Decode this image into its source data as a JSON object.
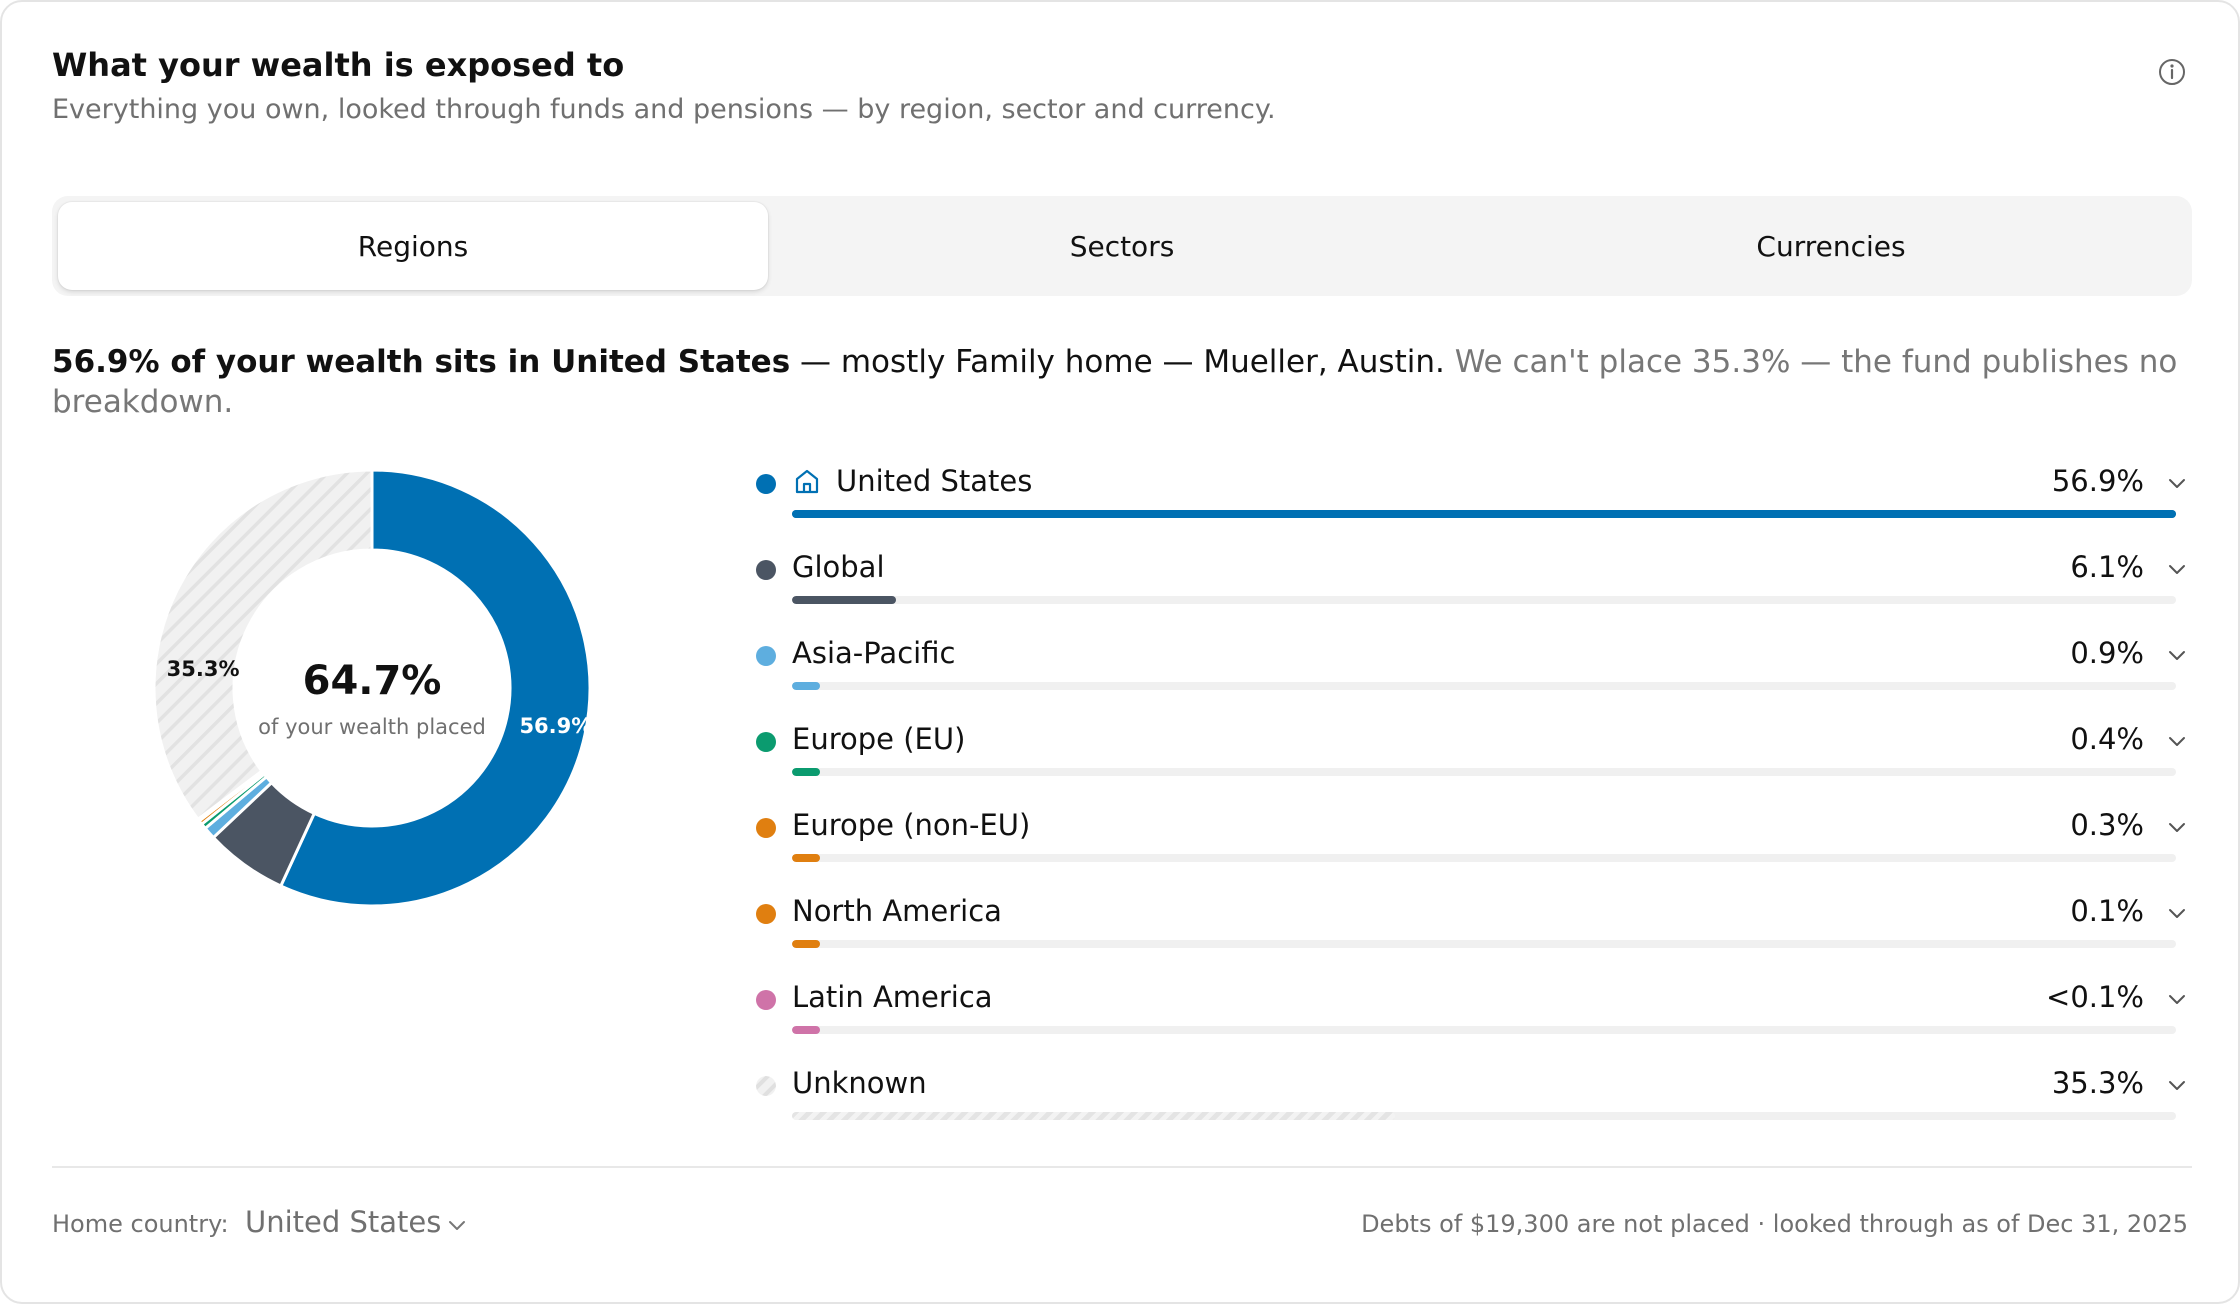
{
  "header": {
    "title": "What your wealth is exposed to",
    "subtitle": "Everything you own, looked through funds and pensions — by region, sector and currency."
  },
  "tabs": [
    {
      "label": "Regions",
      "active": true
    },
    {
      "label": "Sectors",
      "active": false
    },
    {
      "label": "Currencies",
      "active": false
    }
  ],
  "summary": {
    "bold": "56.9% of your wealth sits in United States",
    "normal": " — mostly Family home — Mueller, Austin.",
    "muted": " We can't place 35.3% — the fund publishes no breakdown."
  },
  "donut": {
    "center_value": "64.7%",
    "center_label": "of your wealth placed",
    "label_us": "56.9%",
    "label_unknown": "35.3%"
  },
  "chart_data": {
    "type": "pie",
    "categories": [
      "United States",
      "Global",
      "Asia-Pacific",
      "Europe (EU)",
      "Europe (non-EU)",
      "North America",
      "Latin America",
      "Unknown"
    ],
    "values": [
      56.9,
      6.1,
      0.9,
      0.4,
      0.3,
      0.1,
      0.05,
      35.3
    ],
    "colors": [
      "#0070b3",
      "#4b5563",
      "#5eaedf",
      "#0b9b6f",
      "#e07f10",
      "#e07f10",
      "#cf73a8",
      "#e9e9e9"
    ]
  },
  "regions": [
    {
      "label": "United States",
      "value": "56.9%",
      "pct": 56.9,
      "color": "#0070b3",
      "icon": "home-icon",
      "home": true
    },
    {
      "label": "Global",
      "value": "6.1%",
      "pct": 6.1,
      "color": "#4b5563"
    },
    {
      "label": "Asia-Pacific",
      "value": "0.9%",
      "pct": 0.9,
      "color": "#5eaedf"
    },
    {
      "label": "Europe (EU)",
      "value": "0.4%",
      "pct": 0.4,
      "color": "#0b9b6f"
    },
    {
      "label": "Europe (non-EU)",
      "value": "0.3%",
      "pct": 0.3,
      "color": "#e07f10"
    },
    {
      "label": "North America",
      "value": "0.1%",
      "pct": 0.1,
      "color": "#e07f10"
    },
    {
      "label": "Latin America",
      "value": "<0.1%",
      "pct": 0.05,
      "color": "#cf73a8"
    },
    {
      "label": "Unknown",
      "value": "35.3%",
      "pct": 35.3,
      "color": "#e9e9e9",
      "hatched": true
    }
  ],
  "footer": {
    "home_label": "Home country:",
    "home_value": "United States",
    "note": "Debts of $19,300 are not placed · looked through as of Dec 31, 2025"
  }
}
